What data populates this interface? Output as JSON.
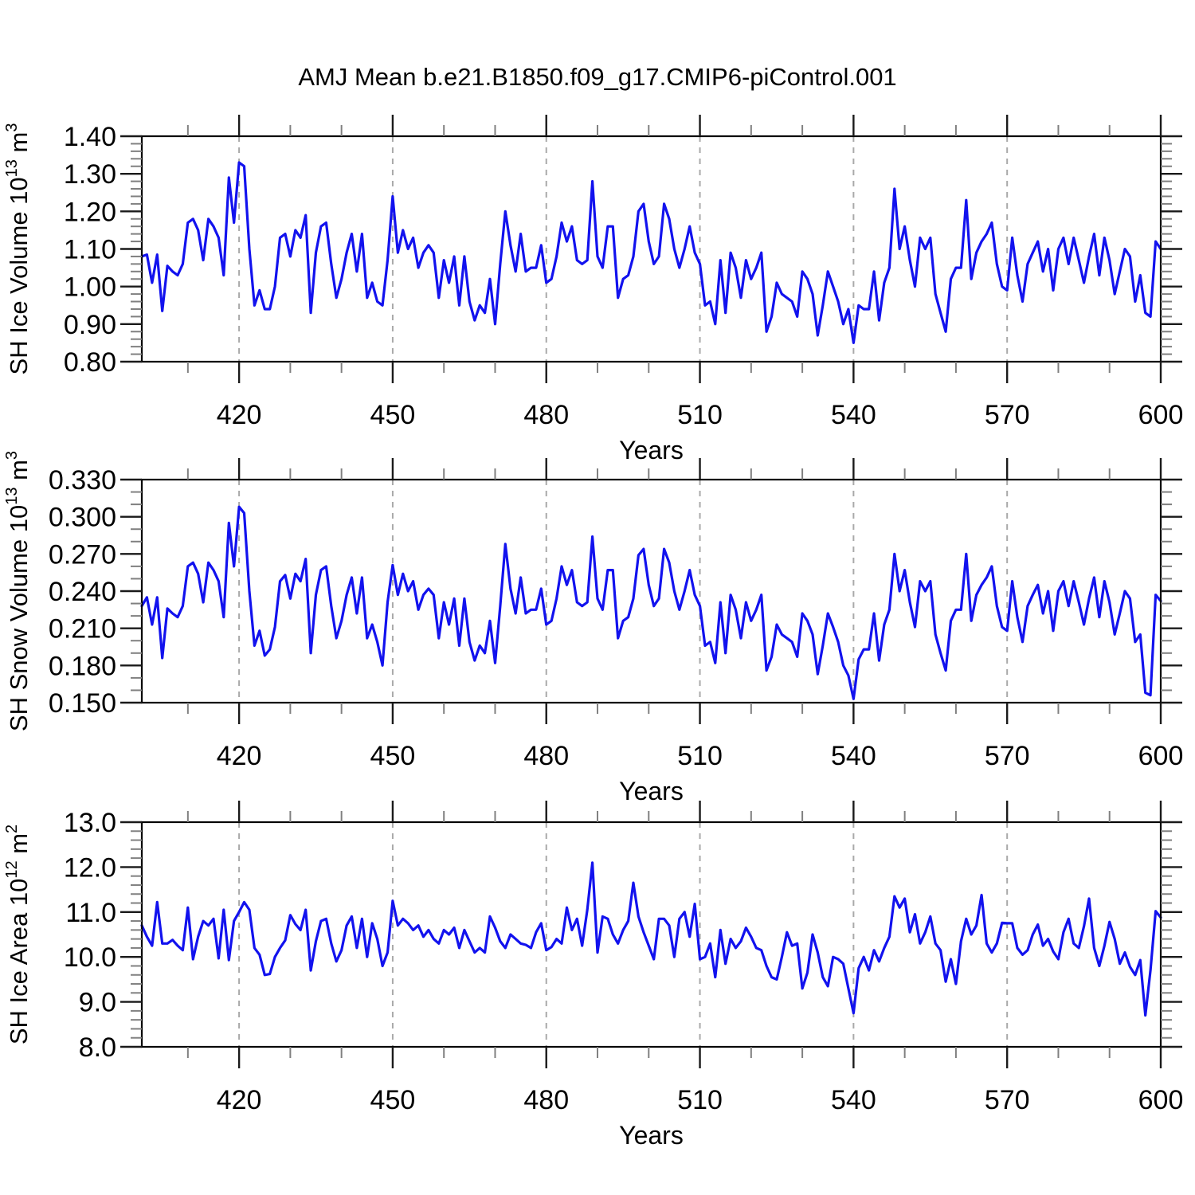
{
  "figure_title": "AMJ Mean b.e21.B1850.f09_g17.CMIP6-piControl.001",
  "colors": {
    "series": "#1212ee",
    "grid": "#a9a9a9",
    "frame": "#000000",
    "major_tick": "#1a1a1a",
    "minor_tick": "#808080",
    "text": "#000000"
  },
  "x_axis": {
    "label": "Years",
    "min": 401,
    "max": 600,
    "major_ticks": [
      420,
      450,
      480,
      510,
      540,
      570,
      600
    ],
    "minor_step": 10,
    "gridline_years": [
      420,
      450,
      480,
      510,
      540,
      570
    ]
  },
  "chart_data": [
    {
      "id": "sh-ice-volume",
      "type": "line",
      "title": "",
      "xlabel": "Years",
      "ylabel": "SH Ice Volume 10^13 m^3",
      "ylabel_parts": [
        [
          "SH Ice Volume 10",
          false
        ],
        [
          "13",
          true
        ],
        [
          " m",
          false
        ],
        [
          "3",
          true
        ]
      ],
      "x_start": 401,
      "x_end": 600,
      "x_step": 1,
      "ylim": [
        0.8,
        1.4
      ],
      "y_major_step": 0.1,
      "y_minor_step": 0.02,
      "y_decimals": 2,
      "legend": "none",
      "values": [
        1.08,
        1.085,
        1.01,
        1.085,
        0.935,
        1.055,
        1.04,
        1.03,
        1.06,
        1.17,
        1.18,
        1.15,
        1.07,
        1.18,
        1.16,
        1.13,
        1.03,
        1.29,
        1.17,
        1.33,
        1.32,
        1.1,
        0.95,
        0.99,
        0.94,
        0.94,
        1.0,
        1.13,
        1.14,
        1.08,
        1.15,
        1.13,
        1.19,
        0.93,
        1.09,
        1.16,
        1.17,
        1.06,
        0.97,
        1.02,
        1.09,
        1.14,
        1.04,
        1.14,
        0.97,
        1.01,
        0.96,
        0.95,
        1.07,
        1.24,
        1.09,
        1.15,
        1.1,
        1.13,
        1.05,
        1.09,
        1.11,
        1.09,
        0.97,
        1.07,
        1.01,
        1.08,
        0.95,
        1.08,
        0.96,
        0.91,
        0.95,
        0.93,
        1.02,
        0.9,
        1.06,
        1.2,
        1.11,
        1.04,
        1.14,
        1.04,
        1.05,
        1.05,
        1.11,
        1.01,
        1.02,
        1.08,
        1.17,
        1.12,
        1.16,
        1.07,
        1.06,
        1.07,
        1.28,
        1.08,
        1.05,
        1.16,
        1.16,
        0.97,
        1.02,
        1.03,
        1.08,
        1.2,
        1.22,
        1.12,
        1.06,
        1.08,
        1.22,
        1.18,
        1.1,
        1.05,
        1.1,
        1.16,
        1.09,
        1.06,
        0.95,
        0.96,
        0.9,
        1.07,
        0.93,
        1.09,
        1.05,
        0.97,
        1.07,
        1.02,
        1.05,
        1.09,
        0.88,
        0.92,
        1.01,
        0.98,
        0.97,
        0.96,
        0.92,
        1.04,
        1.02,
        0.98,
        0.87,
        0.95,
        1.04,
        1.0,
        0.96,
        0.9,
        0.94,
        0.85,
        0.95,
        0.94,
        0.94,
        1.04,
        0.91,
        1.01,
        1.05,
        1.26,
        1.1,
        1.16,
        1.07,
        1.0,
        1.13,
        1.1,
        1.13,
        0.98,
        0.93,
        0.88,
        1.02,
        1.05,
        1.05,
        1.23,
        1.02,
        1.09,
        1.12,
        1.14,
        1.17,
        1.06,
        1.0,
        0.99,
        1.13,
        1.03,
        0.96,
        1.06,
        1.09,
        1.12,
        1.04,
        1.1,
        0.99,
        1.1,
        1.13,
        1.06,
        1.13,
        1.07,
        1.01,
        1.08,
        1.14,
        1.03,
        1.13,
        1.07,
        0.98,
        1.04,
        1.1,
        1.08,
        0.96,
        1.03,
        0.93,
        0.92,
        1.12,
        1.1
      ]
    },
    {
      "id": "sh-snow-volume",
      "type": "line",
      "title": "",
      "xlabel": "Years",
      "ylabel": "SH Snow Volume 10^13 m^3",
      "ylabel_parts": [
        [
          "SH Snow Volume 10",
          false
        ],
        [
          "13",
          true
        ],
        [
          " m",
          false
        ],
        [
          "3",
          true
        ]
      ],
      "x_start": 401,
      "x_end": 600,
      "x_step": 1,
      "ylim": [
        0.15,
        0.33
      ],
      "y_major_step": 0.03,
      "y_minor_step": 0.01,
      "y_decimals": 3,
      "legend": "none",
      "values": [
        0.228,
        0.235,
        0.213,
        0.235,
        0.186,
        0.226,
        0.222,
        0.219,
        0.228,
        0.26,
        0.263,
        0.254,
        0.231,
        0.263,
        0.257,
        0.248,
        0.219,
        0.295,
        0.26,
        0.308,
        0.303,
        0.24,
        0.196,
        0.208,
        0.188,
        0.193,
        0.211,
        0.248,
        0.253,
        0.234,
        0.254,
        0.248,
        0.266,
        0.19,
        0.237,
        0.257,
        0.26,
        0.228,
        0.202,
        0.216,
        0.237,
        0.251,
        0.222,
        0.251,
        0.202,
        0.213,
        0.199,
        0.18,
        0.231,
        0.261,
        0.237,
        0.254,
        0.24,
        0.248,
        0.225,
        0.237,
        0.242,
        0.237,
        0.202,
        0.231,
        0.213,
        0.234,
        0.196,
        0.234,
        0.199,
        0.184,
        0.196,
        0.19,
        0.216,
        0.182,
        0.228,
        0.278,
        0.242,
        0.222,
        0.251,
        0.222,
        0.225,
        0.225,
        0.242,
        0.213,
        0.216,
        0.234,
        0.26,
        0.245,
        0.257,
        0.231,
        0.228,
        0.231,
        0.284,
        0.234,
        0.225,
        0.257,
        0.257,
        0.202,
        0.216,
        0.219,
        0.234,
        0.269,
        0.274,
        0.245,
        0.228,
        0.234,
        0.274,
        0.263,
        0.24,
        0.225,
        0.24,
        0.257,
        0.237,
        0.228,
        0.196,
        0.199,
        0.182,
        0.231,
        0.19,
        0.237,
        0.225,
        0.202,
        0.231,
        0.216,
        0.225,
        0.237,
        0.176,
        0.187,
        0.213,
        0.205,
        0.202,
        0.199,
        0.187,
        0.222,
        0.216,
        0.205,
        0.173,
        0.196,
        0.222,
        0.211,
        0.199,
        0.18,
        0.172,
        0.153,
        0.185,
        0.193,
        0.193,
        0.222,
        0.184,
        0.213,
        0.225,
        0.27,
        0.24,
        0.257,
        0.231,
        0.211,
        0.248,
        0.24,
        0.248,
        0.205,
        0.19,
        0.176,
        0.216,
        0.225,
        0.225,
        0.27,
        0.216,
        0.237,
        0.245,
        0.251,
        0.26,
        0.228,
        0.211,
        0.208,
        0.248,
        0.219,
        0.199,
        0.228,
        0.237,
        0.245,
        0.222,
        0.24,
        0.208,
        0.24,
        0.248,
        0.228,
        0.248,
        0.231,
        0.213,
        0.234,
        0.251,
        0.219,
        0.248,
        0.231,
        0.205,
        0.222,
        0.24,
        0.234,
        0.199,
        0.205,
        0.158,
        0.156,
        0.237,
        0.232
      ]
    },
    {
      "id": "sh-ice-area",
      "type": "line",
      "title": "",
      "xlabel": "Years",
      "ylabel": "SH Ice Area 10^12 m^2",
      "ylabel_parts": [
        [
          "SH Ice Area 10",
          false
        ],
        [
          "12",
          true
        ],
        [
          " m",
          false
        ],
        [
          "2",
          true
        ]
      ],
      "x_start": 401,
      "x_end": 600,
      "x_step": 1,
      "ylim": [
        8.0,
        13.0
      ],
      "y_major_step": 1.0,
      "y_minor_step": 0.2,
      "y_decimals": 1,
      "legend": "none",
      "values": [
        10.7,
        10.45,
        10.25,
        11.22,
        10.3,
        10.3,
        10.38,
        10.25,
        10.15,
        11.1,
        9.95,
        10.45,
        10.8,
        10.7,
        10.85,
        9.97,
        11.05,
        9.93,
        10.8,
        11.0,
        11.22,
        11.05,
        10.2,
        10.05,
        9.6,
        9.62,
        10.0,
        10.2,
        10.37,
        10.93,
        10.73,
        10.6,
        11.05,
        9.7,
        10.35,
        10.8,
        10.85,
        10.3,
        9.9,
        10.15,
        10.7,
        10.9,
        10.2,
        10.85,
        10.0,
        10.75,
        10.4,
        9.8,
        10.1,
        11.25,
        10.7,
        10.85,
        10.75,
        10.6,
        10.7,
        10.45,
        10.6,
        10.4,
        10.3,
        10.6,
        10.5,
        10.65,
        10.2,
        10.6,
        10.35,
        10.1,
        10.2,
        10.1,
        10.9,
        10.65,
        10.35,
        10.2,
        10.5,
        10.4,
        10.3,
        10.27,
        10.2,
        10.55,
        10.75,
        10.15,
        10.22,
        10.4,
        10.3,
        11.1,
        10.6,
        10.85,
        10.25,
        11.05,
        12.1,
        10.1,
        10.9,
        10.85,
        10.5,
        10.3,
        10.6,
        10.8,
        11.65,
        10.9,
        10.55,
        10.25,
        9.95,
        10.85,
        10.85,
        10.7,
        10.0,
        10.85,
        11.0,
        10.45,
        11.18,
        9.95,
        10.0,
        10.3,
        9.55,
        10.6,
        9.85,
        10.4,
        10.2,
        10.35,
        10.65,
        10.45,
        10.2,
        10.15,
        9.8,
        9.55,
        9.5,
        10.0,
        10.55,
        10.25,
        10.3,
        9.3,
        9.65,
        10.5,
        10.1,
        9.55,
        9.35,
        10.0,
        9.95,
        9.85,
        9.3,
        8.75,
        9.75,
        10.0,
        9.7,
        10.15,
        9.9,
        10.2,
        10.45,
        11.35,
        11.1,
        11.3,
        10.55,
        10.95,
        10.3,
        10.55,
        10.9,
        10.3,
        10.15,
        9.45,
        9.95,
        9.4,
        10.35,
        10.85,
        10.5,
        10.7,
        11.38,
        10.3,
        10.1,
        10.3,
        10.76,
        10.75,
        10.75,
        10.2,
        10.05,
        10.15,
        10.5,
        10.72,
        10.25,
        10.4,
        10.12,
        9.95,
        10.55,
        10.85,
        10.3,
        10.2,
        10.68,
        11.3,
        10.2,
        9.8,
        10.25,
        10.78,
        10.4,
        9.85,
        10.1,
        9.78,
        9.6,
        9.93,
        8.7,
        9.7,
        11.02,
        10.88
      ]
    }
  ]
}
